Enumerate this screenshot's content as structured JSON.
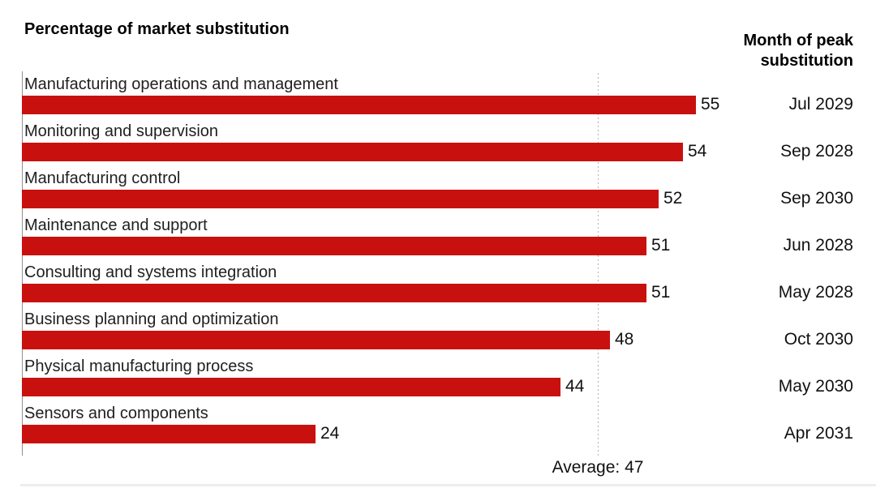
{
  "title": "Percentage of market substitution",
  "month_column": {
    "header_line1": "Month of peak",
    "header_line2": "substitution"
  },
  "chart_data": {
    "type": "bar",
    "orientation": "horizontal",
    "title": "Percentage of market substitution",
    "secondary_column_header": "Month of peak substitution",
    "categories": [
      "Manufacturing operations and management",
      "Monitoring and supervision",
      "Manufacturing control",
      "Maintenance and support",
      "Consulting and systems integration",
      "Business planning and optimization",
      "Physical manufacturing process",
      "Sensors and components"
    ],
    "values": [
      55,
      54,
      52,
      51,
      51,
      48,
      44,
      24
    ],
    "months": [
      "Jul 2029",
      "Sep 2028",
      "Sep 2030",
      "Jun 2028",
      "May 2028",
      "Oct 2030",
      "May 2030",
      "Apr 2031"
    ],
    "average_label": "Average: 47",
    "average_value": 47,
    "bar_color": "#C8110E",
    "axis_line_color": "#8f8f8f",
    "average_line_style": "dashed",
    "grid": false,
    "legend": "none",
    "value_labels_position": "end-of-bar"
  }
}
